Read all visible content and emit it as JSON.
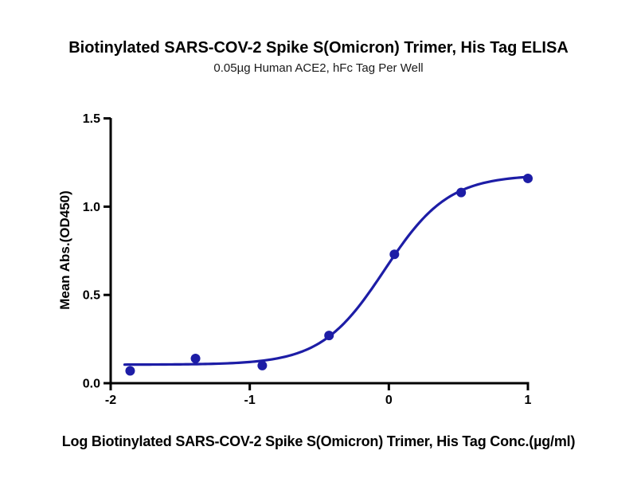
{
  "page": {
    "background_color": "#ffffff",
    "text_color": "#000000"
  },
  "chart_data": {
    "type": "scatter",
    "title": "Biotinylated SARS-COV-2 Spike S(Omicron) Trimer, His Tag ELISA",
    "subtitle": "0.05µg Human ACE2, hFc Tag Per Well",
    "xlabel": "Log Biotinylated SARS-COV-2 Spike S(Omicron) Trimer, His Tag Conc.(µg/ml)",
    "ylabel": "Mean Abs.(OD450)",
    "xlim": [
      -2,
      1
    ],
    "ylim": [
      0,
      1.5
    ],
    "grid": false,
    "legend": "none",
    "accent_color": "#1d1da6",
    "axis_color": "#000000",
    "x_ticks": [
      {
        "value": -2,
        "label": "-2"
      },
      {
        "value": -1,
        "label": "-1"
      },
      {
        "value": 0,
        "label": "0"
      },
      {
        "value": 1,
        "label": "1"
      }
    ],
    "y_ticks": [
      {
        "value": 0.0,
        "label": "0.0"
      },
      {
        "value": 0.5,
        "label": "0.5"
      },
      {
        "value": 1.0,
        "label": "1.0"
      },
      {
        "value": 1.5,
        "label": "1.5"
      }
    ],
    "points": [
      {
        "x": -1.86,
        "y": 0.07
      },
      {
        "x": -1.39,
        "y": 0.14
      },
      {
        "x": -0.91,
        "y": 0.1
      },
      {
        "x": -0.43,
        "y": 0.27
      },
      {
        "x": 0.04,
        "y": 0.73
      },
      {
        "x": 0.52,
        "y": 1.08
      },
      {
        "x": 1.0,
        "y": 1.16
      }
    ],
    "fit_curve": {
      "model": "4PL sigmoid",
      "bottom": 0.105,
      "top": 1.18,
      "log_ec50": -0.03,
      "hill_slope": 1.9,
      "x_start": -1.9,
      "x_end": 1.0
    }
  }
}
